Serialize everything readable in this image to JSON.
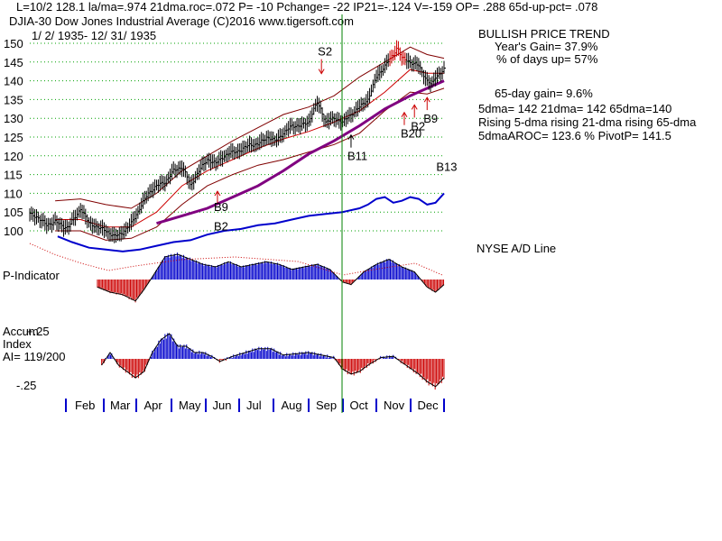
{
  "header": {
    "line1": "L=10/2  128.1  la/ma=.974 21dma.roc=.072 P= -10 Pchange= -22 IP21=-.124 V=-159 OP= .288 65d-up-pct= .078",
    "line2": "DJIA-30  Dow Jones Industrial Average   (C)2016 www.tigersoft.com",
    "line3": "1/ 2/ 1935- 12/ 31/ 1935"
  },
  "side_panel": {
    "title": "BULLISH PRICE TREND",
    "years_gain": "Year's Gain= 37.9%",
    "days_up": "% of days up= 57%",
    "gain_65": "65-day gain= 9.6%",
    "dma_line": "5dma= 142 21dma= 142 65dma=140",
    "rising_line": "Rising 5-dma rising 21-dma rising 65-dma",
    "aroc_line": "5dmaAROC= 123.6 %  PivotP= 141.5",
    "nyse_label": "NYSE A/D Line"
  },
  "indicators": {
    "p_label": "P-Indicator",
    "accum_label1": "Accum",
    "accum_label2": "Index",
    "accum_label3": "AI= 119/200",
    "accum_top": "+.25",
    "accum_bottom": "-.25"
  },
  "colors": {
    "bars": "#000000",
    "ma21": "#cc0000",
    "ma65": "#800080",
    "band": "#800000",
    "ad_line": "#0000cc",
    "positive": "#0000cc",
    "negative": "#cc0000",
    "grid": "#00a000",
    "vline": "#008000"
  },
  "chart_data": {
    "type": "line",
    "title": "DJIA-30 Dow Jones Industrial Average",
    "subtitle": "1/ 2/ 1935- 12/ 31/ 1935",
    "ylim": [
      97,
      151
    ],
    "yticks": [
      100,
      105,
      110,
      115,
      120,
      125,
      130,
      135,
      140,
      145,
      150
    ],
    "months": [
      "Feb",
      "Mar",
      "Apr",
      "May",
      "Jun",
      "Jul",
      "Aug",
      "Sep",
      "Oct",
      "Nov",
      "Dec"
    ],
    "price_series": {
      "name": "DJIA close",
      "points": [
        [
          0,
          104.5
        ],
        [
          10,
          103.5
        ],
        [
          20,
          101.5
        ],
        [
          30,
          102.5
        ],
        [
          40,
          101
        ],
        [
          45,
          101
        ],
        [
          55,
          104
        ],
        [
          60,
          106
        ],
        [
          65,
          104
        ],
        [
          70,
          102
        ],
        [
          80,
          101
        ],
        [
          90,
          100
        ],
        [
          100,
          98.5
        ],
        [
          110,
          99.5
        ],
        [
          120,
          102
        ],
        [
          130,
          106
        ],
        [
          140,
          110
        ],
        [
          150,
          112
        ],
        [
          160,
          113
        ],
        [
          170,
          116
        ],
        [
          180,
          117
        ],
        [
          185,
          115
        ],
        [
          190,
          112
        ],
        [
          200,
          116
        ],
        [
          210,
          119
        ],
        [
          220,
          118
        ],
        [
          230,
          120
        ],
        [
          240,
          121
        ],
        [
          250,
          121.5
        ],
        [
          260,
          123
        ],
        [
          270,
          123
        ],
        [
          280,
          125
        ],
        [
          290,
          124
        ],
        [
          300,
          126
        ],
        [
          310,
          128
        ],
        [
          320,
          128
        ],
        [
          330,
          129
        ],
        [
          335,
          132
        ],
        [
          340,
          134
        ],
        [
          345,
          132
        ],
        [
          350,
          129
        ],
        [
          360,
          130
        ],
        [
          370,
          129
        ],
        [
          380,
          131
        ],
        [
          390,
          133
        ],
        [
          400,
          135
        ],
        [
          410,
          141
        ],
        [
          420,
          144
        ],
        [
          430,
          147
        ],
        [
          435,
          149
        ],
        [
          440,
          146
        ],
        [
          450,
          145
        ],
        [
          460,
          144
        ],
        [
          470,
          140
        ],
        [
          475,
          139
        ],
        [
          480,
          141
        ],
        [
          490,
          143
        ]
      ]
    },
    "ma21_series": {
      "name": "21-dma",
      "points": [
        [
          30,
          103
        ],
        [
          60,
          103
        ],
        [
          90,
          101
        ],
        [
          120,
          101
        ],
        [
          150,
          105
        ],
        [
          180,
          112
        ],
        [
          210,
          116
        ],
        [
          240,
          119
        ],
        [
          270,
          122
        ],
        [
          300,
          124.5
        ],
        [
          330,
          126.5
        ],
        [
          360,
          129
        ],
        [
          390,
          132
        ],
        [
          420,
          137
        ],
        [
          450,
          143
        ],
        [
          470,
          142
        ],
        [
          490,
          142
        ]
      ]
    },
    "ma65_series": {
      "name": "65-dma",
      "points": [
        [
          150,
          102
        ],
        [
          180,
          104
        ],
        [
          210,
          106
        ],
        [
          240,
          109
        ],
        [
          270,
          112
        ],
        [
          300,
          116
        ],
        [
          330,
          120.5
        ],
        [
          360,
          124
        ],
        [
          390,
          128
        ],
        [
          420,
          132.5
        ],
        [
          450,
          136
        ],
        [
          470,
          138
        ],
        [
          490,
          140
        ]
      ]
    },
    "band_upper": {
      "name": "upper band",
      "points": [
        [
          30,
          108
        ],
        [
          60,
          108.5
        ],
        [
          90,
          107
        ],
        [
          120,
          106
        ],
        [
          150,
          110
        ],
        [
          180,
          116
        ],
        [
          210,
          120
        ],
        [
          240,
          124
        ],
        [
          270,
          127.5
        ],
        [
          300,
          131
        ],
        [
          330,
          133
        ],
        [
          360,
          136
        ],
        [
          390,
          141
        ],
        [
          420,
          145
        ],
        [
          450,
          149
        ],
        [
          470,
          147
        ],
        [
          490,
          146
        ]
      ]
    },
    "band_lower": {
      "name": "lower band",
      "points": [
        [
          30,
          100
        ],
        [
          60,
          100
        ],
        [
          90,
          97.5
        ],
        [
          120,
          98
        ],
        [
          150,
          101
        ],
        [
          180,
          107
        ],
        [
          210,
          112
        ],
        [
          240,
          115
        ],
        [
          270,
          117.5
        ],
        [
          300,
          119
        ],
        [
          330,
          121
        ],
        [
          360,
          123
        ],
        [
          390,
          126
        ],
        [
          420,
          132
        ],
        [
          450,
          137
        ],
        [
          470,
          136.5
        ],
        [
          490,
          138
        ]
      ]
    },
    "ad_series": {
      "name": "NYSE A/D Line",
      "points": [
        [
          33,
          98.5
        ],
        [
          50,
          97
        ],
        [
          70,
          95.5
        ],
        [
          90,
          95
        ],
        [
          110,
          94.5
        ],
        [
          130,
          95
        ],
        [
          150,
          96
        ],
        [
          170,
          97
        ],
        [
          190,
          97.5
        ],
        [
          210,
          99
        ],
        [
          230,
          100
        ],
        [
          250,
          100.5
        ],
        [
          270,
          101.5
        ],
        [
          290,
          102
        ],
        [
          310,
          103
        ],
        [
          330,
          104
        ],
        [
          350,
          104.5
        ],
        [
          370,
          105
        ],
        [
          390,
          106
        ],
        [
          400,
          107
        ],
        [
          410,
          108.5
        ],
        [
          420,
          109
        ],
        [
          430,
          107.5
        ],
        [
          440,
          108
        ],
        [
          450,
          109
        ],
        [
          460,
          108.5
        ],
        [
          470,
          107
        ],
        [
          480,
          107.5
        ],
        [
          490,
          110
        ]
      ]
    },
    "annotations": [
      {
        "text": "S2",
        "x": 345,
        "y": 140,
        "dir": "down",
        "label_pos": "above"
      },
      {
        "text": "B9",
        "x": 222,
        "y": 112,
        "dir": "up",
        "label_pos": "below"
      },
      {
        "text": "B2",
        "x": 222,
        "y": 109,
        "dir": "none",
        "label_pos": "below"
      },
      {
        "text": "B11",
        "x": 380,
        "y": 127,
        "dir": "up",
        "label_pos": "below"
      },
      {
        "text": "B20",
        "x": 443,
        "y": 133,
        "dir": "up",
        "label_pos": "below"
      },
      {
        "text": "B2",
        "x": 455,
        "y": 135,
        "dir": "up",
        "label_pos": "below"
      },
      {
        "text": "B9",
        "x": 470,
        "y": 137,
        "dir": "up",
        "label_pos": "below"
      },
      {
        "text": "B13",
        "x": 485,
        "y": 123,
        "dir": "none",
        "label_pos": "below"
      }
    ],
    "p_indicator": {
      "name": "P-Indicator",
      "points": [
        [
          80,
          -0.3
        ],
        [
          95,
          -0.5
        ],
        [
          110,
          -0.6
        ],
        [
          125,
          -0.85
        ],
        [
          135,
          -0.4
        ],
        [
          145,
          0.1
        ],
        [
          160,
          0.9
        ],
        [
          175,
          1.0
        ],
        [
          190,
          0.8
        ],
        [
          205,
          0.6
        ],
        [
          220,
          0.5
        ],
        [
          235,
          0.7
        ],
        [
          250,
          0.5
        ],
        [
          265,
          0.6
        ],
        [
          280,
          0.7
        ],
        [
          295,
          0.6
        ],
        [
          310,
          0.4
        ],
        [
          325,
          0.5
        ],
        [
          340,
          0.6
        ],
        [
          355,
          0.4
        ],
        [
          370,
          -0.1
        ],
        [
          380,
          -0.2
        ],
        [
          395,
          0.3
        ],
        [
          410,
          0.6
        ],
        [
          425,
          0.8
        ],
        [
          440,
          0.5
        ],
        [
          455,
          0.3
        ],
        [
          470,
          -0.3
        ],
        [
          480,
          -0.5
        ],
        [
          490,
          -0.2
        ]
      ]
    },
    "accum_index": {
      "name": "Accum Index",
      "points": [
        [
          85,
          -0.05
        ],
        [
          95,
          0.05
        ],
        [
          105,
          -0.05
        ],
        [
          115,
          -0.1
        ],
        [
          125,
          -0.15
        ],
        [
          135,
          -0.1
        ],
        [
          145,
          0.05
        ],
        [
          155,
          0.15
        ],
        [
          165,
          0.2
        ],
        [
          175,
          0.1
        ],
        [
          185,
          0.1
        ],
        [
          195,
          0.05
        ],
        [
          205,
          0.05
        ],
        [
          215,
          0.02
        ],
        [
          225,
          -0.02
        ],
        [
          240,
          0.02
        ],
        [
          255,
          0.05
        ],
        [
          270,
          0.08
        ],
        [
          285,
          0.08
        ],
        [
          300,
          0.03
        ],
        [
          315,
          0.04
        ],
        [
          330,
          0.05
        ],
        [
          345,
          0.03
        ],
        [
          360,
          0.01
        ],
        [
          370,
          -0.08
        ],
        [
          380,
          -0.12
        ],
        [
          390,
          -0.1
        ],
        [
          400,
          -0.05
        ],
        [
          415,
          0.01
        ],
        [
          430,
          0.02
        ],
        [
          445,
          -0.05
        ],
        [
          460,
          -0.12
        ],
        [
          470,
          -0.18
        ],
        [
          480,
          -0.22
        ],
        [
          490,
          -0.15
        ]
      ]
    }
  }
}
